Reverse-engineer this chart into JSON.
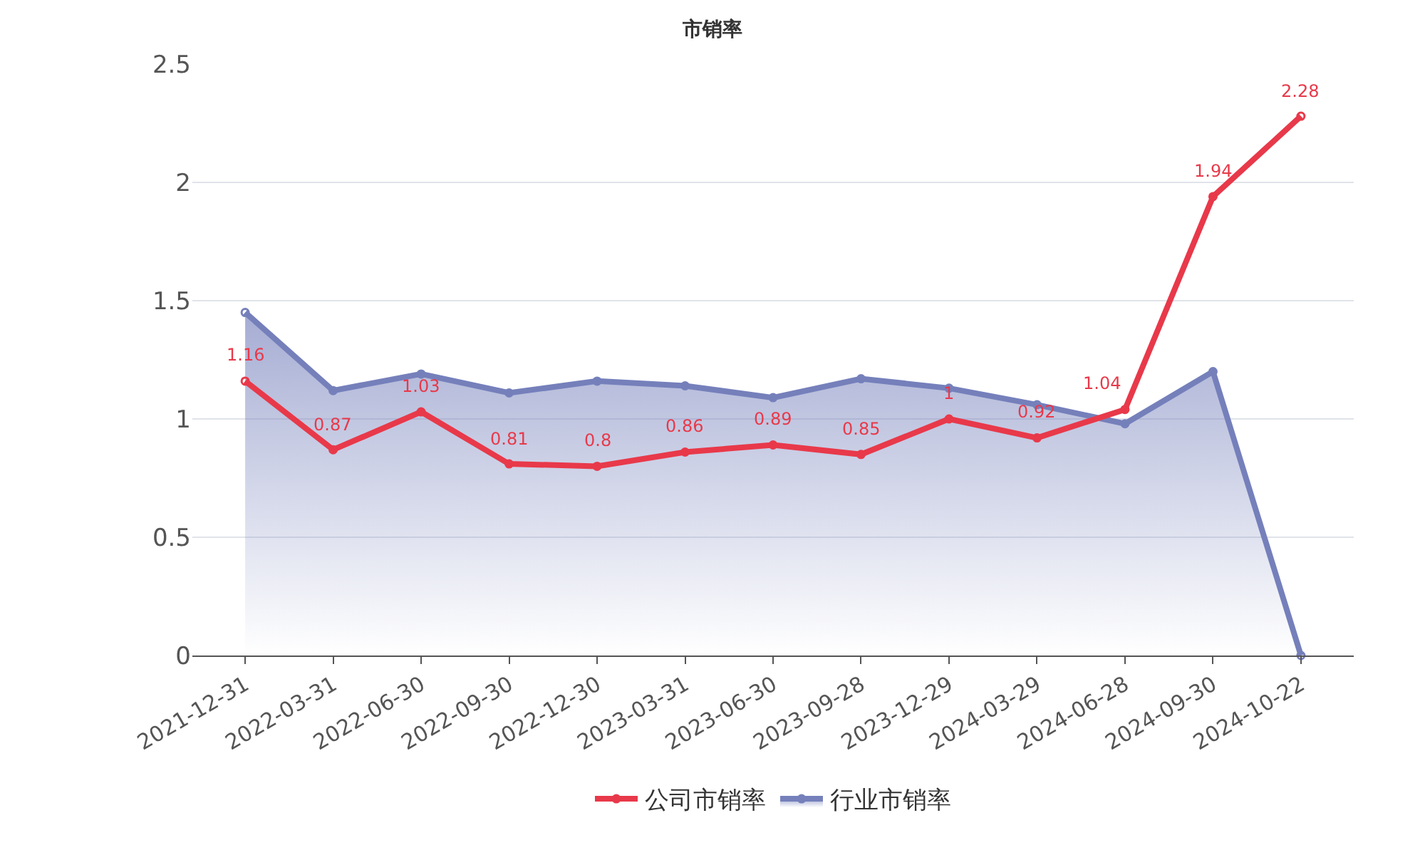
{
  "chart_data": {
    "type": "line",
    "title": "市销率",
    "categories": [
      "2021-12-31",
      "2022-03-31",
      "2022-06-30",
      "2022-09-30",
      "2022-12-30",
      "2023-03-31",
      "2023-06-30",
      "2023-09-28",
      "2023-12-29",
      "2024-03-29",
      "2024-06-28",
      "2024-09-30",
      "2024-10-22"
    ],
    "series": [
      {
        "name": "公司市销率",
        "color": "#e8394a",
        "values": [
          1.16,
          0.87,
          1.03,
          0.81,
          0.8,
          0.86,
          0.89,
          0.85,
          1,
          0.92,
          1.04,
          1.94,
          2.28
        ],
        "value_labels": [
          "1.16",
          "0.87",
          "1.03",
          "0.81",
          "0.8",
          "0.86",
          "0.89",
          "0.85",
          "1",
          "0.92",
          "1.04",
          "1.94",
          "2.28"
        ]
      },
      {
        "name": "行业市销率",
        "type": "area",
        "color": "#7580bb",
        "values": [
          1.45,
          1.12,
          1.19,
          1.11,
          1.16,
          1.14,
          1.09,
          1.17,
          1.13,
          1.06,
          0.98,
          1.2,
          0
        ]
      }
    ],
    "ylim": [
      0,
      2.5
    ],
    "yticks": [
      0,
      0.5,
      1,
      1.5,
      2,
      2.5
    ],
    "grid": "y",
    "legend": "bottom",
    "marker": "circle",
    "line_style": "solid"
  }
}
